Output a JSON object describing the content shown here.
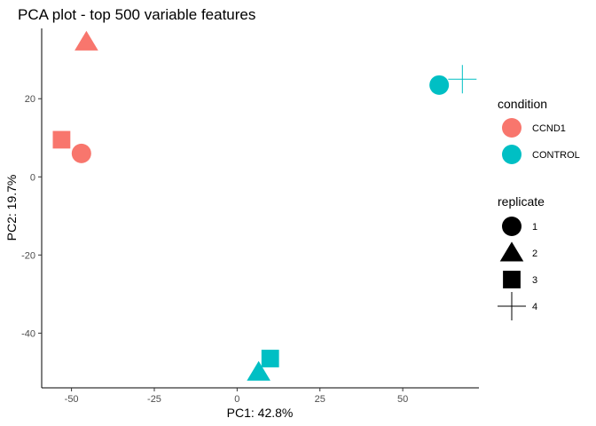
{
  "chart_data": {
    "type": "scatter",
    "title": "PCA plot - top 500 variable features",
    "xlabel": "PC1: 42.8%",
    "ylabel": "PC2: 19.7%",
    "xlim": [
      -59,
      73
    ],
    "ylim": [
      -54,
      38
    ],
    "xticks": [
      -50,
      -25,
      0,
      25,
      50
    ],
    "xtick_labels": [
      "-50",
      "-25",
      "0",
      "25",
      "50"
    ],
    "yticks": [
      -40,
      -20,
      0,
      20
    ],
    "ytick_labels": [
      "-40",
      "-20",
      "0",
      "20"
    ],
    "grid": false,
    "legend_placement": "right",
    "colors": {
      "CCND1": "#F8766D",
      "CONTROL": "#00BFC4"
    },
    "points": [
      {
        "x": -45.5,
        "y": 34.5,
        "condition": "CCND1",
        "replicate": "2"
      },
      {
        "x": -53,
        "y": 9.5,
        "condition": "CCND1",
        "replicate": "3"
      },
      {
        "x": -47,
        "y": 6,
        "condition": "CCND1",
        "replicate": "1"
      },
      {
        "x": 61,
        "y": 23.5,
        "condition": "CONTROL",
        "replicate": "1"
      },
      {
        "x": 68,
        "y": 25,
        "condition": "CONTROL",
        "replicate": "4"
      },
      {
        "x": 10,
        "y": -46.5,
        "condition": "CONTROL",
        "replicate": "3"
      },
      {
        "x": 6.5,
        "y": -50,
        "condition": "CONTROL",
        "replicate": "2"
      }
    ],
    "legend": {
      "condition": {
        "title": "condition",
        "entries": [
          {
            "label": "CCND1",
            "key": "CCND1"
          },
          {
            "label": "CONTROL",
            "key": "CONTROL"
          }
        ]
      },
      "replicate": {
        "title": "replicate",
        "entries": [
          {
            "label": "1",
            "shape": "circle"
          },
          {
            "label": "2",
            "shape": "triangle"
          },
          {
            "label": "3",
            "shape": "square"
          },
          {
            "label": "4",
            "shape": "plus"
          }
        ]
      }
    }
  }
}
